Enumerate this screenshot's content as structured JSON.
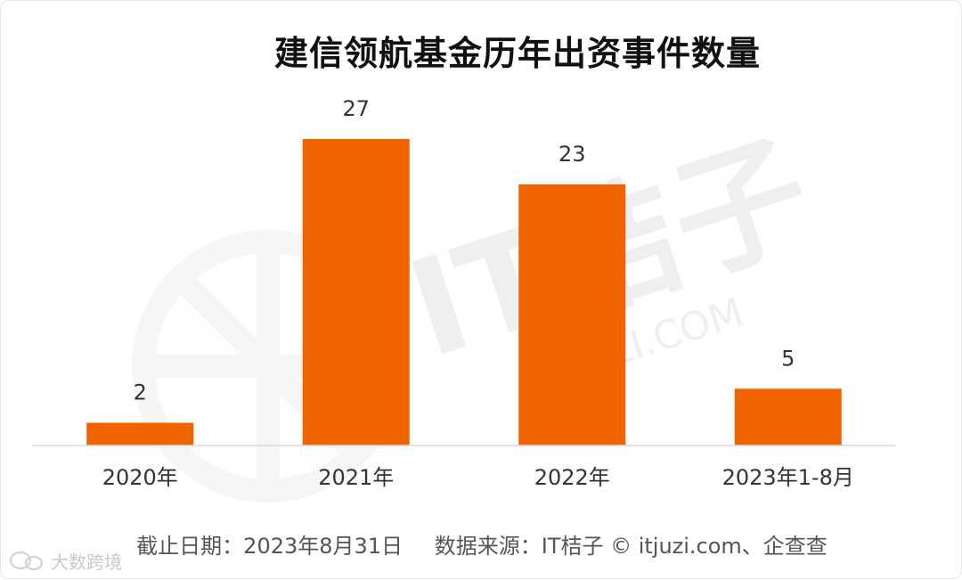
{
  "chart_data": {
    "type": "bar",
    "title": "建信领航基金历年出资事件数量",
    "categories": [
      "2020年",
      "2021年",
      "2022年",
      "2023年1-8月"
    ],
    "values": [
      2,
      27,
      23,
      5
    ],
    "ylim": [
      0,
      30
    ],
    "grid": false,
    "legend": "none",
    "colors": {
      "bar": "#f06400",
      "axis": "#d8d8d8",
      "label": "#333333"
    }
  },
  "footer": {
    "date_note": "截止日期：2023年8月31日",
    "source_note": "数据来源：IT桔子 © itjuzi.com、企查查"
  },
  "watermark": {
    "chart_mark": "IT桔子",
    "chart_mark_url": "ITJUZI.COM",
    "brand_text": "大数跨境",
    "brand_icon": "wechat-bubble-icon"
  }
}
